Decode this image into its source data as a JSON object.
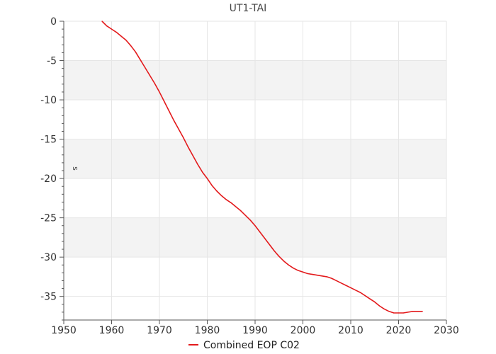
{
  "chart_data": {
    "type": "line",
    "title": "UT1-TAI",
    "xlabel": "",
    "ylabel": "s",
    "xlim": [
      1950,
      2030
    ],
    "ylim": [
      -38,
      0
    ],
    "x_ticks": [
      1950,
      1960,
      1970,
      1980,
      1990,
      2000,
      2010,
      2020,
      2030
    ],
    "y_ticks": [
      0,
      -5,
      -10,
      -15,
      -20,
      -25,
      -30,
      -35
    ],
    "y_bands": [
      [
        -5,
        -10
      ],
      [
        -15,
        -20
      ],
      [
        -25,
        -30
      ]
    ],
    "grid": true,
    "legend_position": "bottom-center",
    "series": [
      {
        "name": "Combined EOP C02",
        "color": "#e31a1c",
        "x": [
          1958.0,
          1959.0,
          1960.0,
          1961.0,
          1962.0,
          1963.0,
          1964.0,
          1965.0,
          1966.0,
          1967.0,
          1968.0,
          1969.0,
          1970.0,
          1971.0,
          1972.0,
          1973.0,
          1974.0,
          1975.0,
          1976.0,
          1977.0,
          1978.0,
          1979.0,
          1980.0,
          1981.0,
          1982.0,
          1983.0,
          1984.0,
          1985.0,
          1986.0,
          1987.0,
          1988.0,
          1989.0,
          1990.0,
          1991.0,
          1992.0,
          1993.0,
          1994.0,
          1995.0,
          1996.0,
          1997.0,
          1998.0,
          1999.0,
          2000.0,
          2001.0,
          2002.0,
          2003.0,
          2004.0,
          2005.0,
          2006.0,
          2007.0,
          2008.0,
          2009.0,
          2010.0,
          2011.0,
          2012.0,
          2013.0,
          2014.0,
          2015.0,
          2016.0,
          2017.0,
          2018.0,
          2019.0,
          2020.0,
          2021.0,
          2022.0,
          2023.0,
          2024.0,
          2025.0
        ],
        "y": [
          0.0,
          -0.6,
          -1.0,
          -1.4,
          -1.9,
          -2.4,
          -3.1,
          -3.9,
          -4.9,
          -5.9,
          -6.9,
          -7.9,
          -9.0,
          -10.2,
          -11.4,
          -12.6,
          -13.7,
          -14.8,
          -16.0,
          -17.1,
          -18.2,
          -19.2,
          -20.0,
          -20.9,
          -21.6,
          -22.2,
          -22.7,
          -23.1,
          -23.6,
          -24.1,
          -24.7,
          -25.3,
          -26.0,
          -26.8,
          -27.6,
          -28.4,
          -29.2,
          -29.9,
          -30.5,
          -31.0,
          -31.4,
          -31.7,
          -31.9,
          -32.1,
          -32.2,
          -32.3,
          -32.4,
          -32.5,
          -32.7,
          -33.0,
          -33.3,
          -33.6,
          -33.9,
          -34.2,
          -34.5,
          -34.9,
          -35.3,
          -35.7,
          -36.2,
          -36.6,
          -36.9,
          -37.1,
          -37.1,
          -37.1,
          -37.0,
          -36.9,
          -36.9,
          -36.9
        ]
      }
    ]
  }
}
